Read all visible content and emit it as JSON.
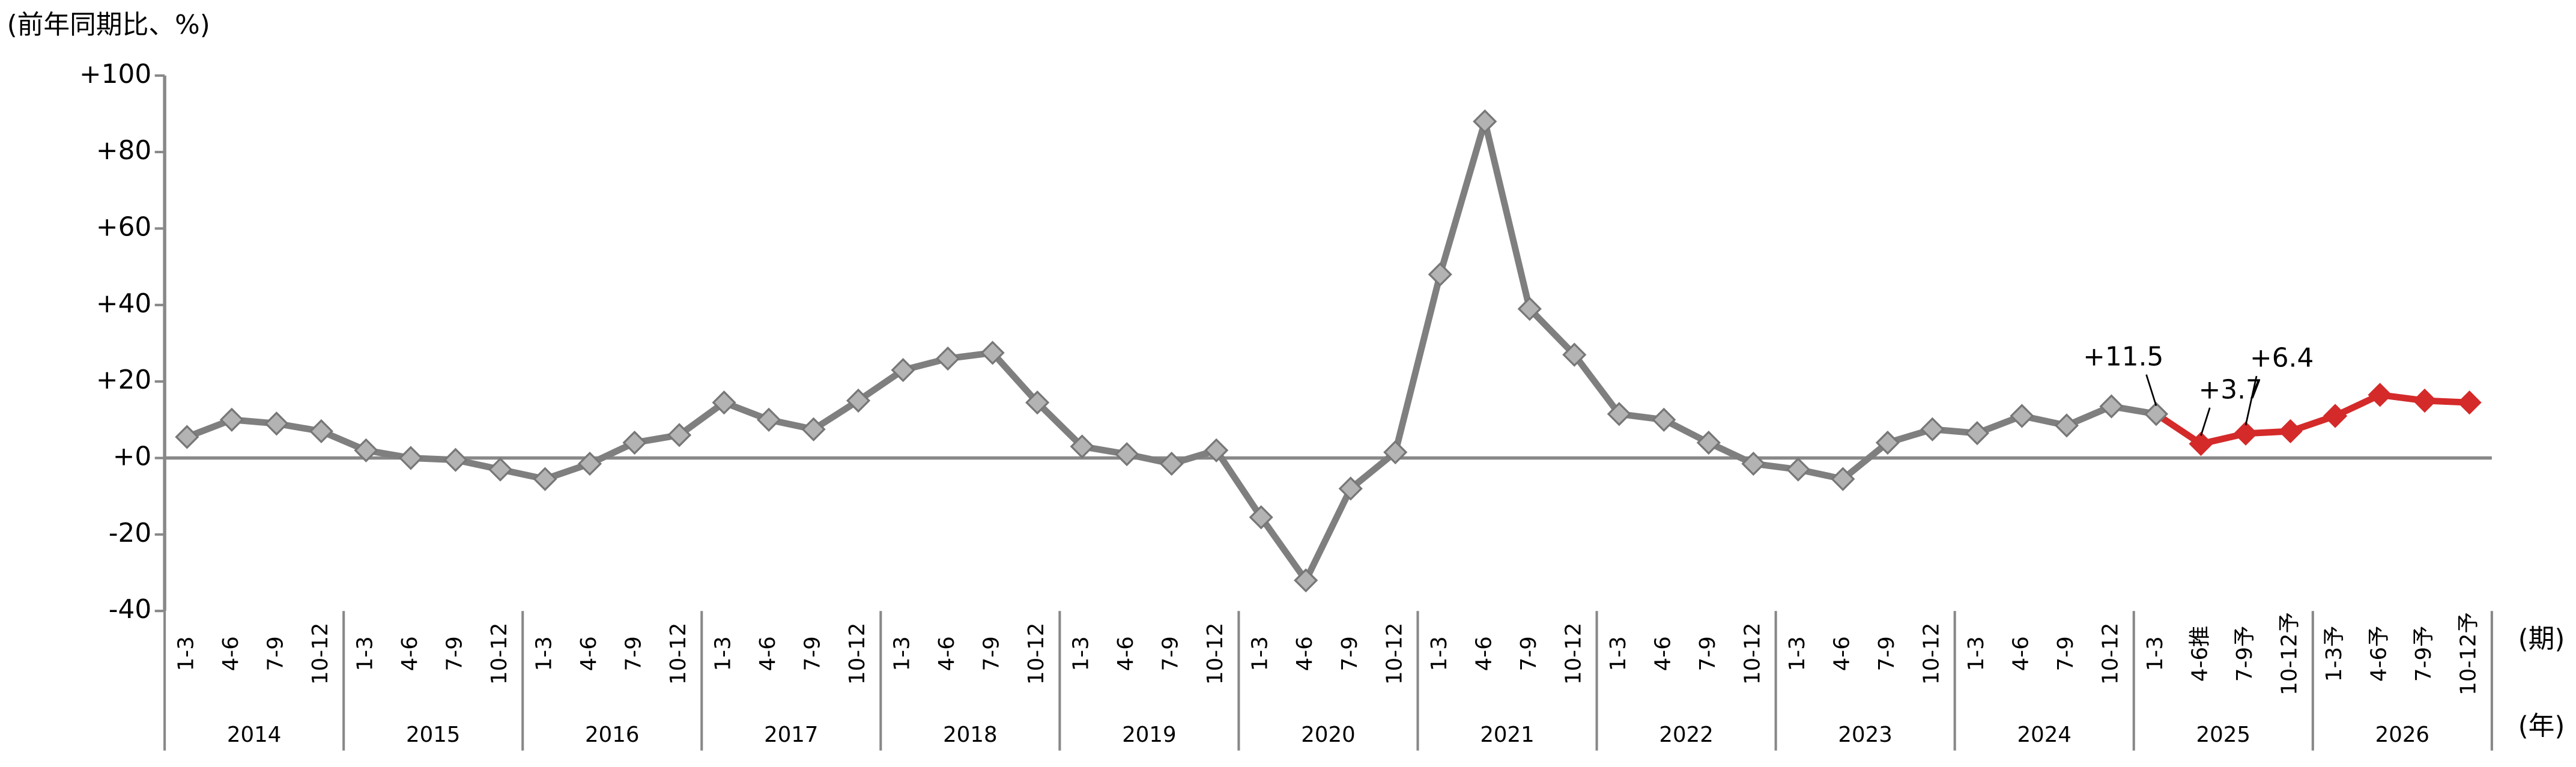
{
  "chart_data": {
    "type": "line",
    "y_label": "(前年同期比、%)",
    "x_label": "(期)",
    "group_label": "(年)",
    "categories": [
      "1-3",
      "4-6",
      "7-9",
      "10-12",
      "1-3",
      "4-6",
      "7-9",
      "10-12",
      "1-3",
      "4-6",
      "7-9",
      "10-12",
      "1-3",
      "4-6",
      "7-9",
      "10-12",
      "1-3",
      "4-6",
      "7-9",
      "10-12",
      "1-3",
      "4-6",
      "7-9",
      "10-12",
      "1-3",
      "4-6",
      "7-9",
      "10-12",
      "1-3",
      "4-6",
      "7-9",
      "10-12",
      "1-3",
      "4-6",
      "7-9",
      "10-12",
      "1-3",
      "4-6",
      "7-9",
      "10-12",
      "1-3",
      "4-6",
      "7-9",
      "10-12",
      "1-3",
      "4-6推",
      "7-9予",
      "10-12予",
      "1-3予",
      "4-6予",
      "7-9予",
      "10-12予"
    ],
    "years": [
      "2014",
      "2015",
      "2016",
      "2017",
      "2018",
      "2019",
      "2020",
      "2021",
      "2022",
      "2023",
      "2024",
      "2025",
      "2026"
    ],
    "values": [
      5.5,
      10,
      9,
      7,
      2,
      0,
      -0.5,
      -3,
      -5.5,
      -1.5,
      4,
      6,
      14.5,
      10,
      7.5,
      15,
      23,
      26,
      27.5,
      14.5,
      3,
      1,
      -1.5,
      2,
      -15.5,
      -32,
      -8,
      1.5,
      48,
      88,
      39,
      27,
      11.5,
      10,
      4,
      -1.5,
      -3,
      -5.5,
      4,
      7.5,
      6.5,
      11,
      8.5,
      13.5,
      11.5,
      3.7,
      6.4,
      7,
      11,
      16.5,
      15,
      14.5
    ],
    "value_labels": [
      null,
      null,
      null,
      null,
      null,
      null,
      null,
      null,
      null,
      null,
      null,
      null,
      null,
      null,
      null,
      null,
      null,
      null,
      null,
      null,
      null,
      null,
      null,
      null,
      null,
      null,
      null,
      null,
      null,
      null,
      null,
      null,
      null,
      null,
      null,
      null,
      null,
      null,
      null,
      null,
      null,
      null,
      null,
      null,
      "+11.5",
      "+3.7",
      "+6.4",
      null,
      null,
      null,
      null,
      null
    ],
    "value_label_colors": [
      null,
      null,
      null,
      null,
      null,
      null,
      null,
      null,
      null,
      null,
      null,
      null,
      null,
      null,
      null,
      null,
      null,
      null,
      null,
      null,
      null,
      null,
      null,
      null,
      null,
      null,
      null,
      null,
      null,
      null,
      null,
      null,
      null,
      null,
      null,
      null,
      null,
      null,
      null,
      null,
      null,
      null,
      null,
      null,
      "#000000",
      "#d42a2a",
      "#d42a2a",
      null,
      null,
      null,
      null,
      null
    ],
    "point_colors": [
      "#7f7f7f",
      "#7f7f7f",
      "#7f7f7f",
      "#7f7f7f",
      "#7f7f7f",
      "#7f7f7f",
      "#7f7f7f",
      "#7f7f7f",
      "#7f7f7f",
      "#7f7f7f",
      "#7f7f7f",
      "#7f7f7f",
      "#7f7f7f",
      "#7f7f7f",
      "#7f7f7f",
      "#7f7f7f",
      "#7f7f7f",
      "#7f7f7f",
      "#7f7f7f",
      "#7f7f7f",
      "#7f7f7f",
      "#7f7f7f",
      "#7f7f7f",
      "#7f7f7f",
      "#7f7f7f",
      "#7f7f7f",
      "#7f7f7f",
      "#7f7f7f",
      "#7f7f7f",
      "#7f7f7f",
      "#7f7f7f",
      "#7f7f7f",
      "#7f7f7f",
      "#7f7f7f",
      "#7f7f7f",
      "#7f7f7f",
      "#7f7f7f",
      "#7f7f7f",
      "#7f7f7f",
      "#7f7f7f",
      "#7f7f7f",
      "#7f7f7f",
      "#7f7f7f",
      "#7f7f7f",
      "#7f7f7f",
      "#d42a2a",
      "#d42a2a",
      "#d42a2a",
      "#d42a2a",
      "#d42a2a",
      "#d42a2a",
      "#d42a2a"
    ],
    "ylim": [
      -40,
      100
    ],
    "yticks": [
      {
        "value": 100,
        "label": "+100"
      },
      {
        "value": 80,
        "label": "+80"
      },
      {
        "value": 60,
        "label": "+60"
      },
      {
        "value": 40,
        "label": "+40"
      },
      {
        "value": 20,
        "label": "+20"
      },
      {
        "value": 0,
        "label": "+0"
      },
      -20,
      -40
    ],
    "negative_tick_color": "#e00000",
    "grid": false
  }
}
